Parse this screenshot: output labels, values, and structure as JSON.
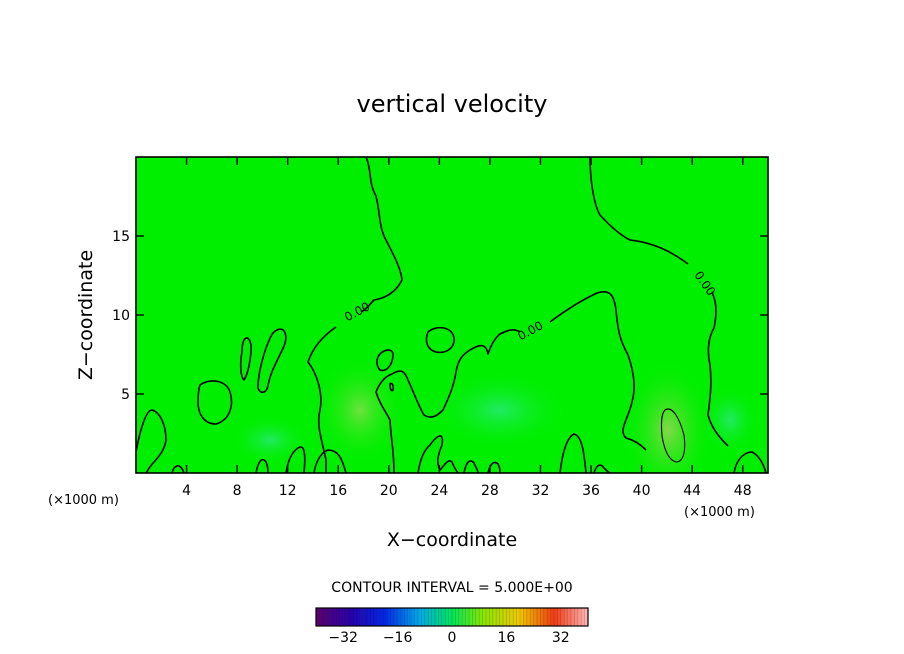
{
  "chart_data": {
    "type": "contour",
    "title": "vertical velocity",
    "xlabel": "X−coordinate",
    "ylabel": "Z−coordinate",
    "x_unit": "(×1000 m)",
    "xlim": [
      0,
      50
    ],
    "ylim": [
      0,
      20
    ],
    "x_ticks": [
      4,
      8,
      12,
      16,
      20,
      24,
      28,
      32,
      36,
      40,
      44,
      48
    ],
    "y_ticks": [
      5,
      10,
      15
    ],
    "contour_interval_label": "CONTOUR INTERVAL = 5.000E+00",
    "contour_labels": [
      {
        "text": "0.00",
        "x": 17.5,
        "y": 10.2
      },
      {
        "text": "0.00",
        "x": 31.2,
        "y": 9.0
      },
      {
        "text": "0.00",
        "x": 45.0,
        "y": 12.0
      }
    ],
    "colorbar": {
      "range": [
        -40,
        40
      ],
      "tick_values": [
        -32,
        -16,
        0,
        16,
        32
      ],
      "tick_labels": [
        "−32",
        "−16",
        "0",
        "16",
        "32"
      ],
      "low_color": "#5a0070",
      "high_color": "#ffb0b0"
    },
    "colors": {
      "background_field": "#00ef00",
      "contour_line": "#000000"
    }
  }
}
